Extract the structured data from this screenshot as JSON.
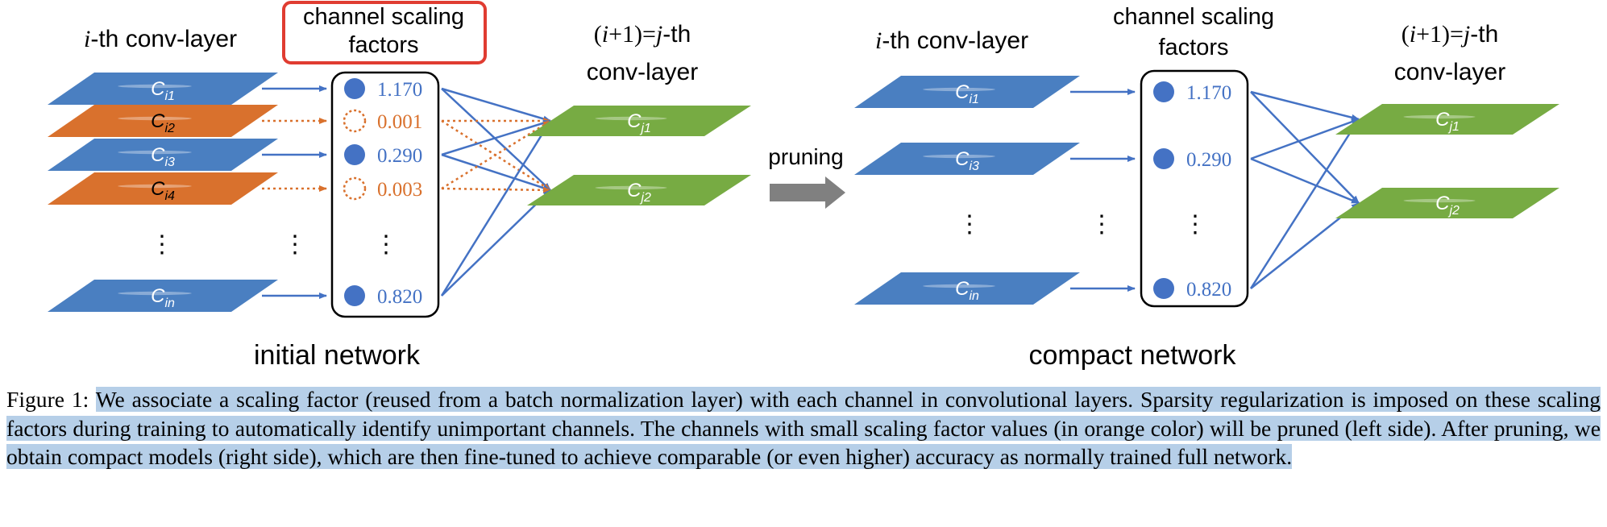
{
  "figure": {
    "colors": {
      "blue": "#4a7fc1",
      "blue_line": "#4472c4",
      "orange": "#d9712d",
      "green": "#77ab43",
      "highlight_box": "#e03c31",
      "arrow_gray": "#808080",
      "caption_highlight": "#b6cfe8"
    },
    "initial": {
      "title": "initial network",
      "layer_i_label": {
        "i": "i",
        "suffix": "-th conv-layer"
      },
      "scaling_label_1": "channel scaling",
      "scaling_label_2": "factors",
      "layer_j_label_1": {
        "open": "(",
        "i": "i",
        "plus": "+1)=",
        "j": "j",
        "suffix": "-th"
      },
      "layer_j_label_2": "conv-layer",
      "input_channels": [
        {
          "base": "C",
          "sub": "i1",
          "kept": true
        },
        {
          "base": "C",
          "sub": "i2",
          "kept": false
        },
        {
          "base": "C",
          "sub": "i3",
          "kept": true
        },
        {
          "base": "C",
          "sub": "i4",
          "kept": false
        },
        {
          "base": "C",
          "sub": "in",
          "kept": true
        }
      ],
      "factors": [
        "1.170",
        "0.001",
        "0.290",
        "0.003",
        "0.820"
      ],
      "output_channels": [
        {
          "base": "C",
          "sub": "j1"
        },
        {
          "base": "C",
          "sub": "j2"
        }
      ]
    },
    "pruning_label": "pruning",
    "compact": {
      "title": "compact network",
      "layer_i_label": {
        "i": "i",
        "suffix": "-th conv-layer"
      },
      "scaling_label_1": "channel scaling",
      "scaling_label_2": "factors",
      "layer_j_label_1": {
        "open": "(",
        "i": "i",
        "plus": "+1)=",
        "j": "j",
        "suffix": "-th"
      },
      "layer_j_label_2": "conv-layer",
      "input_channels": [
        {
          "base": "C",
          "sub": "i1"
        },
        {
          "base": "C",
          "sub": "i3"
        },
        {
          "base": "C",
          "sub": "in"
        }
      ],
      "factors": [
        "1.170",
        "0.290",
        "0.820"
      ],
      "output_channels": [
        {
          "base": "C",
          "sub": "j1"
        },
        {
          "base": "C",
          "sub": "j2"
        }
      ]
    },
    "ellipsis": "⋮"
  },
  "caption": {
    "label": "Figure 1:",
    "text": "We associate a scaling factor (reused from a batch normalization layer) with each channel in convolutional layers. Sparsity regularization is imposed on these scaling factors during training to automatically identify unimportant channels. The channels with small scaling factor values (in orange color) will be pruned (left side). After pruning, we obtain compact models (right side), which are then fine-tuned to achieve comparable (or even higher) accuracy as normally trained full network."
  }
}
